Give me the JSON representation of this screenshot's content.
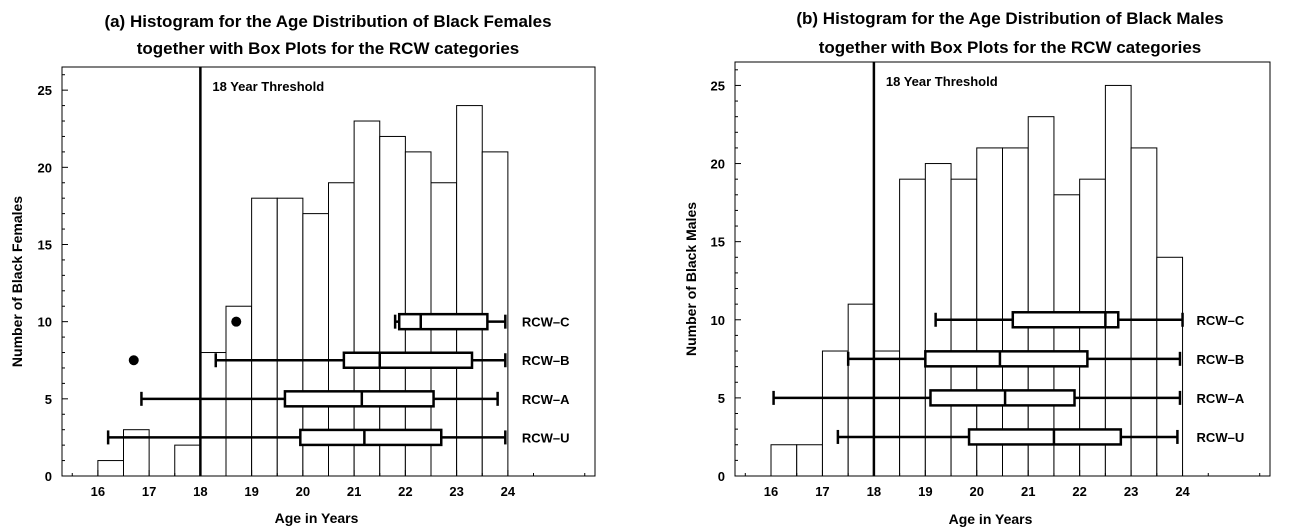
{
  "chart_data": [
    {
      "type": "bar",
      "title": [
        "(a) Histogram for the Age Distribution of Black Females",
        "together with Box Plots for the RCW categories"
      ],
      "xlabel": "Age in Years",
      "ylabel": "Number of Black Females",
      "xlim": [
        15.3,
        25.7
      ],
      "ylim": [
        0,
        26.5
      ],
      "xticks": [
        "16",
        "17",
        "18",
        "19",
        "20",
        "21",
        "22",
        "23",
        "24"
      ],
      "yticks": [
        "0",
        "5",
        "10",
        "15",
        "20",
        "25"
      ],
      "bin_width": 0.5,
      "bins": [
        {
          "start": 16.0,
          "count": 1
        },
        {
          "start": 16.5,
          "count": 3
        },
        {
          "start": 17.0,
          "count": 0
        },
        {
          "start": 17.5,
          "count": 2
        },
        {
          "start": 18.0,
          "count": 8
        },
        {
          "start": 18.5,
          "count": 11
        },
        {
          "start": 19.0,
          "count": 18
        },
        {
          "start": 19.5,
          "count": 18
        },
        {
          "start": 20.0,
          "count": 17
        },
        {
          "start": 20.5,
          "count": 19
        },
        {
          "start": 21.0,
          "count": 23
        },
        {
          "start": 21.5,
          "count": 22
        },
        {
          "start": 22.0,
          "count": 21
        },
        {
          "start": 22.5,
          "count": 19
        },
        {
          "start": 23.0,
          "count": 24
        },
        {
          "start": 23.5,
          "count": 21
        }
      ],
      "threshold": {
        "x": 18,
        "label": "18 Year Threshold"
      },
      "boxplots": [
        {
          "name": "RCW–C",
          "y": 10.0,
          "min": 21.8,
          "q1": 21.88,
          "median": 22.3,
          "q3": 23.6,
          "max": 23.95,
          "outliers": [
            18.7
          ]
        },
        {
          "name": "RCW–B",
          "y": 7.5,
          "min": 18.3,
          "q1": 20.8,
          "median": 21.5,
          "q3": 23.3,
          "max": 23.95,
          "outliers": [
            16.7
          ]
        },
        {
          "name": "RCW–A",
          "y": 5.0,
          "min": 16.85,
          "q1": 19.65,
          "median": 21.15,
          "q3": 22.55,
          "max": 23.8,
          "outliers": []
        },
        {
          "name": "RCW–U",
          "y": 2.5,
          "min": 16.2,
          "q1": 19.95,
          "median": 21.2,
          "q3": 22.7,
          "max": 23.95,
          "outliers": []
        }
      ]
    },
    {
      "type": "bar",
      "title": [
        "(b) Histogram for the Age Distribution of Black Males",
        "together with Box Plots for the RCW categories"
      ],
      "xlabel": "Age in Years",
      "ylabel": "Number of Black Males",
      "xlim": [
        15.3,
        25.7
      ],
      "ylim": [
        0,
        26.5
      ],
      "xticks": [
        "16",
        "17",
        "18",
        "19",
        "20",
        "21",
        "22",
        "23",
        "24"
      ],
      "yticks": [
        "0",
        "5",
        "10",
        "15",
        "20",
        "25"
      ],
      "bin_width": 0.5,
      "bins": [
        {
          "start": 16.0,
          "count": 2
        },
        {
          "start": 16.5,
          "count": 2
        },
        {
          "start": 17.0,
          "count": 8
        },
        {
          "start": 17.5,
          "count": 11
        },
        {
          "start": 18.0,
          "count": 8
        },
        {
          "start": 18.5,
          "count": 19
        },
        {
          "start": 19.0,
          "count": 20
        },
        {
          "start": 19.5,
          "count": 19
        },
        {
          "start": 20.0,
          "count": 21
        },
        {
          "start": 20.5,
          "count": 21
        },
        {
          "start": 21.0,
          "count": 23
        },
        {
          "start": 21.5,
          "count": 18
        },
        {
          "start": 22.0,
          "count": 19
        },
        {
          "start": 22.5,
          "count": 25
        },
        {
          "start": 23.0,
          "count": 21
        },
        {
          "start": 23.5,
          "count": 14
        }
      ],
      "threshold": {
        "x": 18,
        "label": "18 Year Threshold"
      },
      "boxplots": [
        {
          "name": "RCW–C",
          "y": 10.0,
          "min": 19.2,
          "q1": 20.7,
          "median": 22.5,
          "q3": 22.75,
          "max": 24.0,
          "outliers": []
        },
        {
          "name": "RCW–B",
          "y": 7.5,
          "min": 17.5,
          "q1": 19.0,
          "median": 20.45,
          "q3": 22.15,
          "max": 23.95,
          "outliers": []
        },
        {
          "name": "RCW–A",
          "y": 5.0,
          "min": 16.05,
          "q1": 19.1,
          "median": 20.55,
          "q3": 21.9,
          "max": 23.95,
          "outliers": []
        },
        {
          "name": "RCW–U",
          "y": 2.5,
          "min": 17.3,
          "q1": 19.85,
          "median": 21.5,
          "q3": 22.8,
          "max": 23.9,
          "outliers": []
        }
      ]
    }
  ]
}
